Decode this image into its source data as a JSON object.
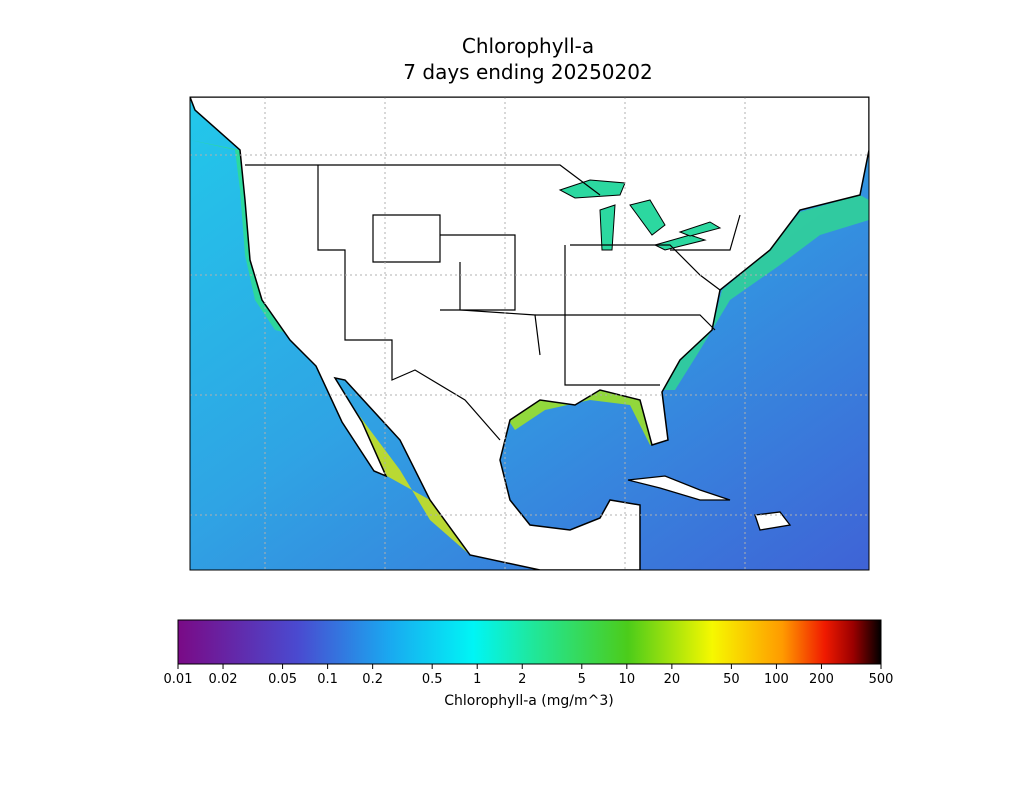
{
  "chart_data": {
    "type": "colorbar",
    "title": [
      "Chlorophyll-a",
      "7 days ending 20250202"
    ],
    "xlabel": "Chlorophyll-a (mg/m^3)",
    "log_scale": true,
    "xlim": [
      0.01,
      500
    ],
    "xticks": [
      0.01,
      0.02,
      0.05,
      0.1,
      0.2,
      0.5,
      1,
      2,
      5,
      10,
      20,
      50,
      100,
      200,
      500
    ]
  }
}
